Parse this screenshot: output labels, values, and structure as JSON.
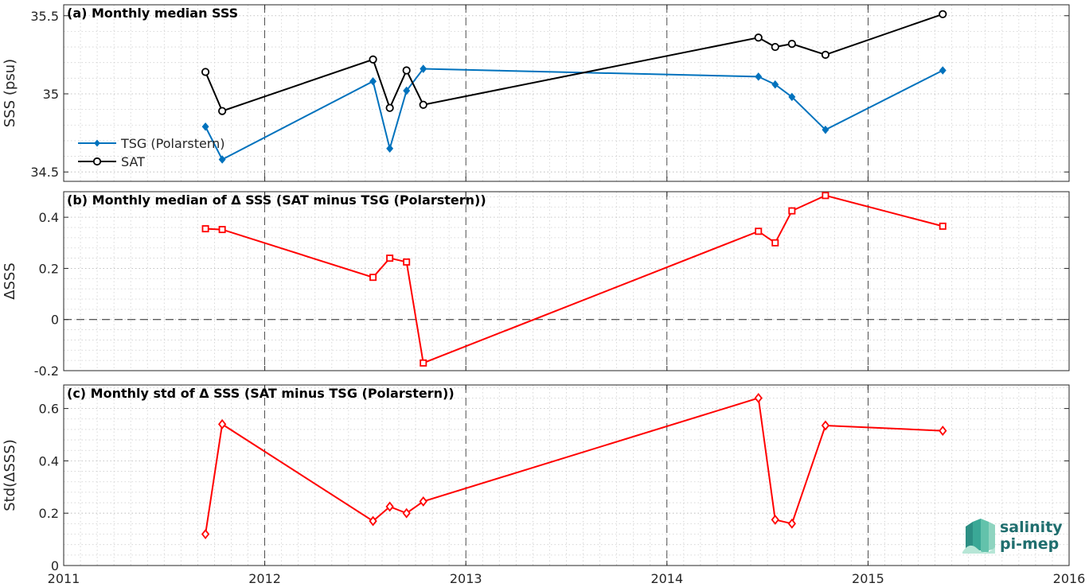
{
  "chart_data": [
    {
      "type": "line",
      "title": "(a) Monthly median SSS",
      "ylabel": "SSS (psu)",
      "xlabel": "",
      "xlim": [
        "2011-01-01",
        "2016-01-01"
      ],
      "ylim": [
        34.44,
        35.57
      ],
      "yticks": [
        34.5,
        35,
        35.5
      ],
      "ytick_labels": [
        "34.5",
        "35",
        "35.5"
      ],
      "grid": true,
      "legend": "bottom-left",
      "series": [
        {
          "name": "TSG (Polarstern)",
          "color": "#0072BD",
          "marker": "diamond-filled",
          "x": [
            "2011-09-15",
            "2011-10-15",
            "2012-07-15",
            "2012-08-15",
            "2012-09-15",
            "2012-10-15",
            "2014-06-15",
            "2014-07-15",
            "2014-08-15",
            "2014-10-15",
            "2015-05-15"
          ],
          "y": [
            34.79,
            34.58,
            35.08,
            34.65,
            35.02,
            35.16,
            35.11,
            35.06,
            34.98,
            34.77,
            35.15
          ]
        },
        {
          "name": "SAT",
          "color": "#000000",
          "marker": "circle-open",
          "x": [
            "2011-09-15",
            "2011-10-15",
            "2012-07-15",
            "2012-08-15",
            "2012-09-15",
            "2012-10-15",
            "2014-06-15",
            "2014-07-15",
            "2014-08-15",
            "2014-10-15",
            "2015-05-15"
          ],
          "y": [
            35.14,
            34.89,
            35.22,
            34.91,
            35.15,
            34.93,
            35.36,
            35.3,
            35.32,
            35.25,
            35.51
          ]
        }
      ]
    },
    {
      "type": "line",
      "title": "(b) Monthly median of Δ SSS (SAT minus TSG (Polarstern))",
      "ylabel": "ΔSSS",
      "xlabel": "",
      "xlim": [
        "2011-01-01",
        "2016-01-01"
      ],
      "ylim": [
        -0.2,
        0.5
      ],
      "yticks": [
        -0.2,
        0,
        0.2,
        0.4
      ],
      "ytick_labels": [
        "-0.2",
        "0",
        "0.2",
        "0.4"
      ],
      "zero_line": 0,
      "grid": true,
      "series": [
        {
          "color": "#FF0000",
          "marker": "square-open",
          "x": [
            "2011-09-15",
            "2011-10-15",
            "2012-07-15",
            "2012-08-15",
            "2012-09-15",
            "2012-10-15",
            "2014-06-15",
            "2014-07-15",
            "2014-08-15",
            "2014-10-15",
            "2015-05-15"
          ],
          "y": [
            0.355,
            0.352,
            0.165,
            0.24,
            0.225,
            -0.17,
            0.345,
            0.3,
            0.425,
            0.485,
            0.365
          ]
        }
      ]
    },
    {
      "type": "line",
      "title": "(c) Monthly std of Δ SSS (SAT minus TSG (Polarstern))",
      "ylabel": "Std(ΔSSS)",
      "xlabel": "",
      "xlim": [
        "2011-01-01",
        "2016-01-01"
      ],
      "ylim": [
        0,
        0.69
      ],
      "yticks": [
        0,
        0.2,
        0.4,
        0.6
      ],
      "ytick_labels": [
        "0",
        "0.2",
        "0.4",
        "0.6"
      ],
      "xticks": [
        "2011-01-01",
        "2012-01-01",
        "2013-01-01",
        "2014-01-01",
        "2015-01-01",
        "2016-01-01"
      ],
      "xtick_labels": [
        "2011",
        "2012",
        "2013",
        "2014",
        "2015",
        "2016"
      ],
      "grid": true,
      "series": [
        {
          "color": "#FF0000",
          "marker": "diamond-open",
          "x": [
            "2011-09-15",
            "2011-10-15",
            "2012-07-15",
            "2012-08-15",
            "2012-09-15",
            "2012-10-15",
            "2014-06-15",
            "2014-07-15",
            "2014-08-15",
            "2014-10-15",
            "2015-05-15"
          ],
          "y": [
            0.12,
            0.54,
            0.17,
            0.225,
            0.2,
            0.245,
            0.64,
            0.175,
            0.16,
            0.535,
            0.515
          ]
        }
      ]
    }
  ],
  "logo": {
    "line1": "salinity",
    "line2": "pi-mep"
  }
}
